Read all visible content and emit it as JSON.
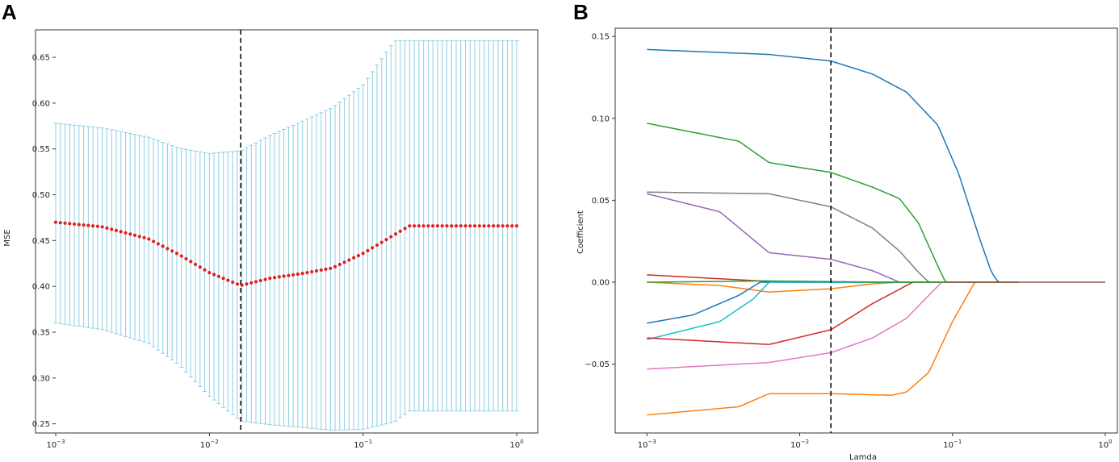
{
  "chart_data": [
    {
      "panel": "A",
      "type": "scatter",
      "title": "",
      "xlabel": "",
      "ylabel": "MSE",
      "xscale": "log",
      "xlim": [
        0.001,
        1
      ],
      "ylim": [
        0.24,
        0.68
      ],
      "xticks": [
        0.001,
        0.01,
        0.1,
        1
      ],
      "xtick_labels": [
        {
          "base": "10",
          "exp": "−3"
        },
        {
          "base": "10",
          "exp": "−2"
        },
        {
          "base": "10",
          "exp": "−1"
        },
        {
          "base": "10",
          "exp": "0"
        }
      ],
      "yticks": [
        0.25,
        0.3,
        0.35,
        0.4,
        0.45,
        0.5,
        0.55,
        0.6,
        0.65
      ],
      "ytick_labels": [
        "0.25",
        "0.30",
        "0.35",
        "0.40",
        "0.45",
        "0.50",
        "0.55",
        "0.60",
        "0.65"
      ],
      "cutoff_x": 0.016,
      "n_points": 100,
      "colors": {
        "mean": "#e02020",
        "errorbar": "#8ccfe3",
        "cutoff": "#000000"
      },
      "series": [
        {
          "name": "mean MSE",
          "x": [
            0.001,
            0.002,
            0.004,
            0.0063,
            0.01,
            0.016,
            0.025,
            0.04,
            0.063,
            0.1,
            0.2,
            0.4,
            1.0
          ],
          "values": [
            0.47,
            0.465,
            0.452,
            0.435,
            0.415,
            0.401,
            0.409,
            0.414,
            0.42,
            0.436,
            0.466,
            0.466,
            0.466
          ]
        },
        {
          "name": "upper bound",
          "x": [
            0.001,
            0.002,
            0.004,
            0.0063,
            0.01,
            0.016,
            0.025,
            0.04,
            0.063,
            0.1,
            0.16,
            0.2,
            1.0
          ],
          "values": [
            0.578,
            0.573,
            0.563,
            0.551,
            0.545,
            0.548,
            0.565,
            0.58,
            0.595,
            0.62,
            0.668,
            0.668,
            0.668
          ]
        },
        {
          "name": "lower bound",
          "x": [
            0.001,
            0.002,
            0.004,
            0.0063,
            0.01,
            0.016,
            0.025,
            0.04,
            0.063,
            0.1,
            0.16,
            0.2,
            1.0
          ],
          "values": [
            0.36,
            0.353,
            0.338,
            0.315,
            0.28,
            0.253,
            0.249,
            0.246,
            0.243,
            0.244,
            0.252,
            0.264,
            0.264
          ]
        }
      ]
    },
    {
      "panel": "B",
      "type": "line",
      "title": "",
      "xlabel": "Lamda",
      "ylabel": "Coefficient",
      "xscale": "log",
      "xlim": [
        0.00062,
        1.2
      ],
      "ylim": [
        -0.092,
        0.155
      ],
      "xticks": [
        0.001,
        0.01,
        0.1,
        1
      ],
      "xtick_labels": [
        {
          "base": "10",
          "exp": "−3"
        },
        {
          "base": "10",
          "exp": "−2"
        },
        {
          "base": "10",
          "exp": "−1"
        },
        {
          "base": "10",
          "exp": "0"
        }
      ],
      "yticks": [
        -0.05,
        0.0,
        0.05,
        0.1,
        0.15
      ],
      "ytick_labels": [
        "−0.05",
        "0.00",
        "0.05",
        "0.10",
        "0.15"
      ],
      "cutoff_x": 0.016,
      "series": [
        {
          "name": "blue-top",
          "color": "#1f77b4",
          "x": [
            0.001,
            0.0063,
            0.016,
            0.03,
            0.05,
            0.08,
            0.11,
            0.15,
            0.18,
            0.2,
            1.0
          ],
          "values": [
            0.142,
            0.139,
            0.135,
            0.127,
            0.116,
            0.096,
            0.066,
            0.027,
            0.006,
            0.0,
            0.0
          ]
        },
        {
          "name": "green",
          "color": "#2ca02c",
          "x": [
            0.001,
            0.004,
            0.0063,
            0.016,
            0.03,
            0.045,
            0.06,
            0.08,
            0.09,
            1.0
          ],
          "values": [
            0.097,
            0.086,
            0.073,
            0.067,
            0.058,
            0.051,
            0.036,
            0.01,
            0.0,
            0.0
          ]
        },
        {
          "name": "gray",
          "color": "#7f7f7f",
          "x": [
            0.001,
            0.0063,
            0.016,
            0.03,
            0.045,
            0.06,
            0.07,
            1.0
          ],
          "values": [
            0.055,
            0.054,
            0.046,
            0.033,
            0.019,
            0.006,
            0.0,
            0.0
          ]
        },
        {
          "name": "purple",
          "color": "#9467bd",
          "x": [
            0.001,
            0.003,
            0.0063,
            0.016,
            0.03,
            0.045,
            1.0
          ],
          "values": [
            0.054,
            0.043,
            0.018,
            0.014,
            0.007,
            0.0,
            0.0
          ]
        },
        {
          "name": "red-top",
          "color": "#d62728",
          "x": [
            0.001,
            0.0063,
            0.01,
            1.0
          ],
          "values": [
            0.0045,
            0.0005,
            0.0,
            0.0
          ]
        },
        {
          "name": "orange-small",
          "color": "#ff7f0e",
          "x": [
            0.001,
            0.003,
            0.0063,
            0.016,
            0.03,
            0.045,
            1.0
          ],
          "values": [
            0.0,
            -0.002,
            -0.006,
            -0.004,
            -0.001,
            0.0,
            0.0
          ]
        },
        {
          "name": "blue-low",
          "color": "#1f77b4",
          "x": [
            0.001,
            0.002,
            0.004,
            0.0055,
            1.0
          ],
          "values": [
            -0.025,
            -0.02,
            -0.008,
            0.0,
            0.0
          ]
        },
        {
          "name": "cyan",
          "color": "#17becf",
          "x": [
            0.001,
            0.003,
            0.005,
            0.0063,
            1.0
          ],
          "values": [
            -0.035,
            -0.024,
            -0.01,
            0.0,
            0.0
          ]
        },
        {
          "name": "red-low",
          "color": "#d62728",
          "x": [
            0.001,
            0.0063,
            0.016,
            0.03,
            0.055,
            1.0
          ],
          "values": [
            -0.034,
            -0.038,
            -0.029,
            -0.013,
            0.0,
            0.0
          ]
        },
        {
          "name": "pink",
          "color": "#e377c2",
          "x": [
            0.001,
            0.0063,
            0.016,
            0.03,
            0.05,
            0.07,
            0.085,
            1.0
          ],
          "values": [
            -0.053,
            -0.049,
            -0.043,
            -0.034,
            -0.022,
            -0.008,
            0.0,
            0.0
          ]
        },
        {
          "name": "orange-low",
          "color": "#ff7f0e",
          "x": [
            0.001,
            0.004,
            0.0063,
            0.016,
            0.04,
            0.05,
            0.07,
            0.1,
            0.14,
            1.0
          ],
          "values": [
            -0.081,
            -0.076,
            -0.068,
            -0.068,
            -0.069,
            -0.067,
            -0.055,
            -0.024,
            0.0,
            0.0
          ]
        },
        {
          "name": "green-flat",
          "color": "#2ca02c",
          "x": [
            0.001,
            0.006,
            0.04,
            1.0
          ],
          "values": [
            0.0,
            0.0008,
            0.0,
            0.0
          ]
        },
        {
          "name": "brown-flat",
          "color": "#8c564b",
          "x": [
            0.09,
            1.0
          ],
          "values": [
            0.0,
            0.0
          ]
        }
      ]
    }
  ],
  "labels": {
    "panel_a": "A",
    "panel_b": "B"
  }
}
